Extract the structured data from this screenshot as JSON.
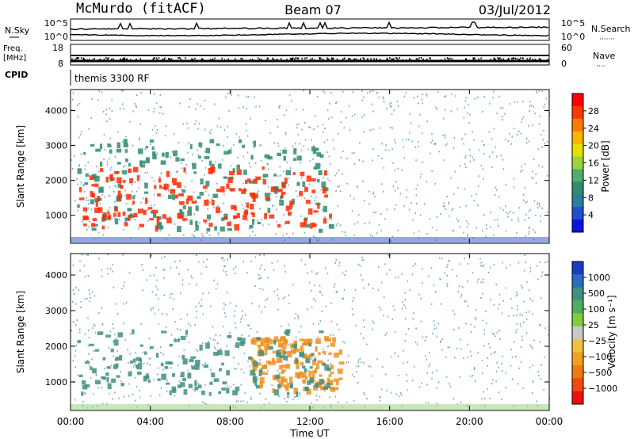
{
  "header": {
    "station": "McMurdo (fitACF)",
    "beam": "Beam 07",
    "date": "03/Jul/2012"
  },
  "left_labels": {
    "nsky": "N.Sky",
    "freq": "Freq.",
    "freq_unit": "[MHz]",
    "cpid": "CPID"
  },
  "right_labels": {
    "nsearch": "N.Search",
    "nsearch_dots": "·······",
    "nave": "Nave",
    "nave_dots": "····"
  },
  "cpid_name": "themis 3300 RF",
  "colors": {
    "line": "#000000",
    "scatter": "#7aa8c8"
  },
  "chart_data": [
    {
      "type": "line",
      "panel": "noise",
      "title": "",
      "left_ticks": [
        "10^5",
        "10^0"
      ],
      "right_ticks": [
        "10^5",
        "10^0"
      ]
    },
    {
      "type": "line",
      "panel": "frequency",
      "left_ticks": [
        "18",
        "8"
      ],
      "right_ticks": [
        "60",
        "0"
      ]
    },
    {
      "type": "heatmap",
      "panel": "power",
      "ylabel": "Slant Range [km]",
      "yticks": [
        "4000",
        "3000",
        "2000",
        "1000"
      ],
      "ytick_values": [
        4000,
        3000,
        2000,
        1000
      ],
      "ylim": [
        200,
        4600
      ],
      "xlim_hours": [
        0,
        24
      ],
      "colorbar_label": "Power [dB]",
      "colorbar_ticks": [
        "28",
        "24",
        "20",
        "16",
        "12",
        "8",
        "4"
      ],
      "colorbar_colors": [
        "#ff0000",
        "#ff3a00",
        "#ff7a00",
        "#ffb300",
        "#e8e000",
        "#9ad43a",
        "#4fae6a",
        "#2e8c6e",
        "#2b7ea0",
        "#1f4fcf",
        "#0a14e0"
      ]
    },
    {
      "type": "heatmap",
      "panel": "velocity",
      "ylabel": "Slant Range [km]",
      "yticks": [
        "4000",
        "3000",
        "2000",
        "1000"
      ],
      "ytick_values": [
        4000,
        3000,
        2000,
        1000
      ],
      "ylim": [
        200,
        4600
      ],
      "xlim_hours": [
        0,
        24
      ],
      "colorbar_label": "Velocity [m s⁻¹]",
      "colorbar_ticks": [
        "1000",
        "500",
        "100",
        "25",
        "−25",
        "−100",
        "−500",
        "−1000"
      ],
      "colorbar_colors": [
        "#1a3bc8",
        "#2a6cc0",
        "#3f9080",
        "#4cae5e",
        "#80cc3c",
        "#c8c8c8",
        "#f0c040",
        "#f0a020",
        "#f07a10",
        "#f04a10",
        "#ee1010"
      ]
    }
  ],
  "xaxis": {
    "label": "Time UT",
    "ticks": [
      "00:00",
      "04:00",
      "08:00",
      "12:00",
      "16:00",
      "20:00",
      "00:00"
    ],
    "tick_hours": [
      0,
      4,
      8,
      12,
      16,
      20,
      24
    ]
  },
  "echo_regions": [
    {
      "panel": "power",
      "t0": 0.3,
      "t1": 13.0,
      "r0": 700,
      "r1": 2400,
      "color": "#ff2a00"
    },
    {
      "panel": "power",
      "t0": 0.3,
      "t1": 13.0,
      "r0": 600,
      "r1": 3200,
      "color": "#2e8c6e"
    },
    {
      "panel": "velocity",
      "t0": 0.3,
      "t1": 13.0,
      "r0": 700,
      "r1": 2500,
      "color": "#3f9080"
    },
    {
      "panel": "velocity",
      "t0": 9.0,
      "t1": 13.5,
      "r0": 800,
      "r1": 2300,
      "color": "#f09020"
    }
  ]
}
